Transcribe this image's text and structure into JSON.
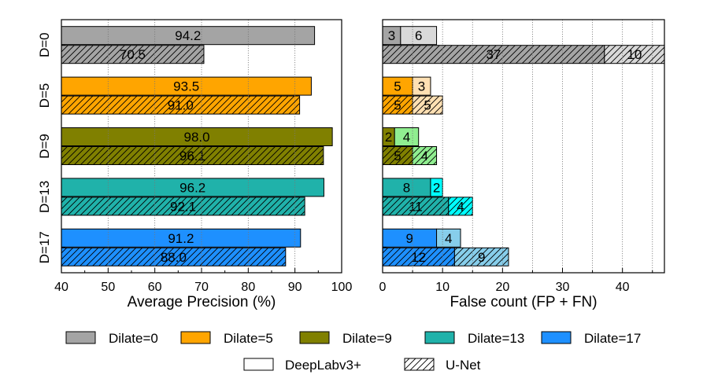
{
  "chart_data": [
    {
      "type": "bar",
      "orientation": "horizontal",
      "categories": [
        "D=0",
        "D=5",
        "D=9",
        "D=13",
        "D=17"
      ],
      "series": [
        {
          "name": "DeepLabv3+",
          "values": [
            94.2,
            93.5,
            98.0,
            96.2,
            91.2
          ],
          "labels": [
            "94.2",
            "93.5",
            "98.0",
            "96.2",
            "91.2"
          ]
        },
        {
          "name": "U-Net",
          "values": [
            70.5,
            91.0,
            96.1,
            92.1,
            88.0
          ],
          "labels": [
            "70.5",
            "91.0",
            "96.1",
            "92.1",
            "88.0"
          ]
        }
      ],
      "xlabel": "Average Precision (%)",
      "xlim": [
        40,
        100
      ],
      "xticks": [
        "40",
        "50",
        "60",
        "70",
        "80",
        "90",
        "100"
      ],
      "grid": "vertical dotted"
    },
    {
      "type": "bar",
      "orientation": "horizontal",
      "stacked": true,
      "categories": [
        "D=0",
        "D=5",
        "D=9",
        "D=13",
        "D=17"
      ],
      "series": [
        {
          "name": "DeepLabv3+",
          "fp": [
            3,
            5,
            2,
            8,
            9
          ],
          "fn": [
            6,
            3,
            4,
            2,
            4
          ]
        },
        {
          "name": "U-Net",
          "fp": [
            37,
            5,
            5,
            11,
            12
          ],
          "fn": [
            10,
            5,
            4,
            4,
            9
          ]
        }
      ],
      "xlabel": "False count (FP + FN)",
      "xlim": [
        0,
        47
      ],
      "xticks": [
        "0",
        "10",
        "20",
        "30",
        "40"
      ],
      "grid": "vertical dotted"
    }
  ],
  "legend": {
    "dilations": [
      {
        "label": "Dilate=0",
        "color": "#a4a4a4",
        "light": "#d9d9d9"
      },
      {
        "label": "Dilate=5",
        "color": "#ffa500",
        "light": "#ffe0b3"
      },
      {
        "label": "Dilate=9",
        "color": "#808000",
        "light": "#90ee90"
      },
      {
        "label": "Dilate=13",
        "color": "#20b2aa",
        "light": "#00ffff"
      },
      {
        "label": "Dilate=17",
        "color": "#1e90ff",
        "light": "#87ceeb"
      }
    ],
    "models": [
      {
        "label": "DeepLabv3+",
        "pattern": "solid"
      },
      {
        "label": "U-Net",
        "pattern": "hatched"
      }
    ]
  }
}
